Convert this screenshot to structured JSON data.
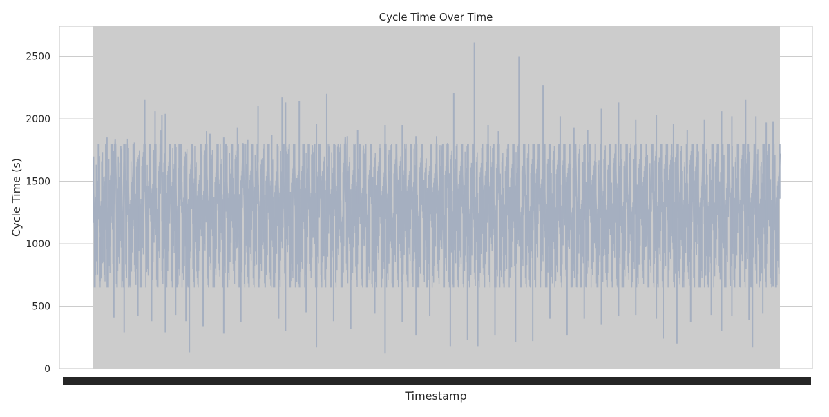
{
  "chart_data": {
    "type": "line",
    "title": "Cycle Time Over Time",
    "xlabel": "Timestamp",
    "ylabel": "Cycle Time (s)",
    "ylim": [
      0,
      2740
    ],
    "yticks": [
      0,
      500,
      1000,
      1500,
      2000,
      2500
    ],
    "grid": true,
    "legend": "none",
    "colors": {
      "line": "#a5afc0",
      "band": "#cccccc",
      "grid": "#cccccc",
      "frame": "#cccccc",
      "xtick_overlap": "#262626"
    },
    "series": [
      {
        "values": [
          1480,
          1010,
          1230,
          1520,
          1050,
          1330,
          1190,
          1450,
          960,
          1270,
          1620,
          1140,
          1830,
          1090,
          1310,
          1390,
          1020,
          1760,
          1210,
          1560,
          1000,
          1270,
          1640,
          1120,
          1300,
          1450,
          950,
          1380,
          1780,
          1090,
          1220,
          1660,
          1140,
          1340,
          1560,
          1050,
          1280,
          1900,
          1180,
          1420,
          990,
          1300,
          1630,
          1120,
          1350,
          1580,
          1000,
          1230,
          1690,
          1100,
          1320,
          1470,
          960,
          1290,
          1790,
          1160,
          1380,
          1040,
          1260,
          1540,
          1080,
          1330,
          1660,
          1110,
          1290,
          1460,
          970,
          1260,
          1730,
          1150,
          1400,
          1010,
          1240,
          1580,
          1090,
          1340,
          1620,
          1120,
          1360,
          1470,
          990,
          1230,
          1800,
          1140,
          1400,
          1050,
          1290,
          1590,
          1100,
          1320,
          1650,
          1060,
          1280,
          1460,
          980,
          1260,
          1710,
          1130,
          1390,
          1020,
          1240,
          1570,
          1090,
          1350,
          1620,
          1150,
          1380,
          1490,
          1000,
          1240,
          1770,
          1110,
          1300,
          1040,
          1280,
          1550,
          1080,
          1330,
          1660,
          1120,
          1390,
          1500,
          990,
          1250,
          1720,
          1160,
          1370,
          1030,
          1270,
          1560,
          1070,
          1330,
          1610,
          1130,
          1410,
          1460,
          960,
          1280,
          1850,
          1150,
          1360,
          1030,
          1240,
          1570,
          1090,
          1320,
          1650,
          1110,
          1380,
          1480,
          1010,
          1220,
          1730,
          1140,
          1390,
          1060,
          1300,
          1540,
          1050,
          1290,
          1640,
          1100,
          1340,
          1470,
          980,
          1260,
          1750,
          1120,
          1360,
          1010,
          1230,
          1530,
          1080,
          1300,
          1610,
          1150,
          1380,
          1450,
          990,
          1270,
          1720,
          1110,
          1340,
          1030,
          1260,
          1560,
          1070,
          1310,
          1680,
          1120,
          1370,
          1460,
          960,
          1240,
          1800,
          1160,
          1400,
          1040,
          1270,
          1580,
          1090,
          1330,
          1630,
          1120,
          1350,
          1490,
          1000,
          1260,
          1710,
          1130,
          1380,
          1020,
          1240,
          1560,
          1080,
          1320,
          1660,
          1140,
          1390,
          1470,
          990,
          1250,
          1760,
          1150,
          1370,
          1050,
          1280,
          1550,
          1060,
          1300,
          1620,
          1110,
          1340,
          1480,
          970,
          1230,
          1740,
          1140,
          1400,
          1030,
          1260,
          1590,
          1090,
          1330,
          1650,
          1120,
          1360,
          1500,
          990,
          1280,
          1730,
          1150,
          1380,
          1020,
          1250,
          1560,
          1070,
          1320,
          1640,
          1130,
          1370,
          1460,
          960,
          1240,
          1790,
          1120,
          1390,
          1040,
          1270,
          1570,
          1090,
          1300,
          1610,
          1140,
          1350,
          1470,
          980,
          1260,
          1720,
          1160,
          1380,
          1030,
          1240,
          1550,
          1080,
          1330,
          1660,
          1110,
          1340,
          1490,
          1000,
          1250,
          1740,
          1130,
          1390,
          1010,
          1280,
          1560,
          1060,
          1320,
          1640,
          1120,
          1370,
          1480,
          970,
          1230,
          1770,
          1150,
          1360,
          1050,
          1290,
          1580,
          1080,
          1310,
          1630,
          1130,
          1380,
          1460,
          990,
          1270,
          1720,
          1140,
          1400,
          1020,
          1250,
          1560,
          1100,
          1340,
          1670,
          1120,
          1360,
          1500,
          980,
          1240,
          1760,
          1160,
          1370,
          1040,
          1270,
          1540,
          1070,
          1320,
          1620,
          1110,
          1350,
          1470,
          960,
          1260,
          1730,
          1130,
          1390,
          1030,
          1280,
          1570,
          1090,
          1300,
          1650,
          1140,
          1380,
          1490,
          1010,
          1250,
          1750,
          1150,
          1360,
          1020,
          1240,
          1560,
          1080,
          1330,
          1630,
          1120,
          1370,
          1460,
          970,
          1270,
          1720
        ],
        "peaks": [
          [
            0.02,
            1850
          ],
          [
            0.03,
            1740
          ],
          [
            0.04,
            1780
          ],
          [
            0.05,
            1840
          ],
          [
            0.06,
            1810
          ],
          [
            0.075,
            2150
          ],
          [
            0.09,
            2060
          ],
          [
            0.1,
            2030
          ],
          [
            0.105,
            2040
          ],
          [
            0.125,
            1800
          ],
          [
            0.145,
            1760
          ],
          [
            0.165,
            1900
          ],
          [
            0.17,
            1880
          ],
          [
            0.19,
            1850
          ],
          [
            0.21,
            1930
          ],
          [
            0.225,
            1830
          ],
          [
            0.24,
            2100
          ],
          [
            0.26,
            1870
          ],
          [
            0.275,
            2170
          ],
          [
            0.28,
            2130
          ],
          [
            0.3,
            2140
          ],
          [
            0.325,
            1960
          ],
          [
            0.34,
            2200
          ],
          [
            0.37,
            1860
          ],
          [
            0.385,
            1910
          ],
          [
            0.405,
            1800
          ],
          [
            0.425,
            1950
          ],
          [
            0.45,
            1950
          ],
          [
            0.47,
            1860
          ],
          [
            0.5,
            1860
          ],
          [
            0.525,
            2210
          ],
          [
            0.555,
            2610
          ],
          [
            0.575,
            1950
          ],
          [
            0.59,
            1900
          ],
          [
            0.62,
            2500
          ],
          [
            0.655,
            2270
          ],
          [
            0.68,
            2020
          ],
          [
            0.7,
            1930
          ],
          [
            0.72,
            1910
          ],
          [
            0.74,
            2080
          ],
          [
            0.765,
            2130
          ],
          [
            0.79,
            1990
          ],
          [
            0.82,
            2030
          ],
          [
            0.845,
            1960
          ],
          [
            0.865,
            1910
          ],
          [
            0.89,
            1990
          ],
          [
            0.915,
            2060
          ],
          [
            0.93,
            2020
          ],
          [
            0.95,
            2150
          ],
          [
            0.965,
            2020
          ],
          [
            0.98,
            1970
          ],
          [
            0.99,
            1980
          ]
        ],
        "troughs": [
          [
            0.01,
            700
          ],
          [
            0.03,
            410
          ],
          [
            0.045,
            290
          ],
          [
            0.065,
            420
          ],
          [
            0.085,
            380
          ],
          [
            0.105,
            290
          ],
          [
            0.12,
            430
          ],
          [
            0.135,
            380
          ],
          [
            0.14,
            130
          ],
          [
            0.16,
            340
          ],
          [
            0.19,
            280
          ],
          [
            0.215,
            370
          ],
          [
            0.27,
            400
          ],
          [
            0.28,
            300
          ],
          [
            0.31,
            450
          ],
          [
            0.325,
            170
          ],
          [
            0.35,
            380
          ],
          [
            0.375,
            320
          ],
          [
            0.41,
            440
          ],
          [
            0.425,
            120
          ],
          [
            0.45,
            370
          ],
          [
            0.47,
            270
          ],
          [
            0.49,
            420
          ],
          [
            0.52,
            180
          ],
          [
            0.545,
            230
          ],
          [
            0.56,
            180
          ],
          [
            0.585,
            270
          ],
          [
            0.615,
            210
          ],
          [
            0.64,
            220
          ],
          [
            0.665,
            400
          ],
          [
            0.69,
            270
          ],
          [
            0.715,
            400
          ],
          [
            0.74,
            350
          ],
          [
            0.765,
            420
          ],
          [
            0.79,
            430
          ],
          [
            0.82,
            400
          ],
          [
            0.83,
            240
          ],
          [
            0.85,
            200
          ],
          [
            0.87,
            370
          ],
          [
            0.9,
            430
          ],
          [
            0.915,
            300
          ],
          [
            0.93,
            420
          ],
          [
            0.955,
            390
          ],
          [
            0.96,
            170
          ],
          [
            0.975,
            440
          ],
          [
            0.99,
            660
          ]
        ]
      }
    ]
  }
}
